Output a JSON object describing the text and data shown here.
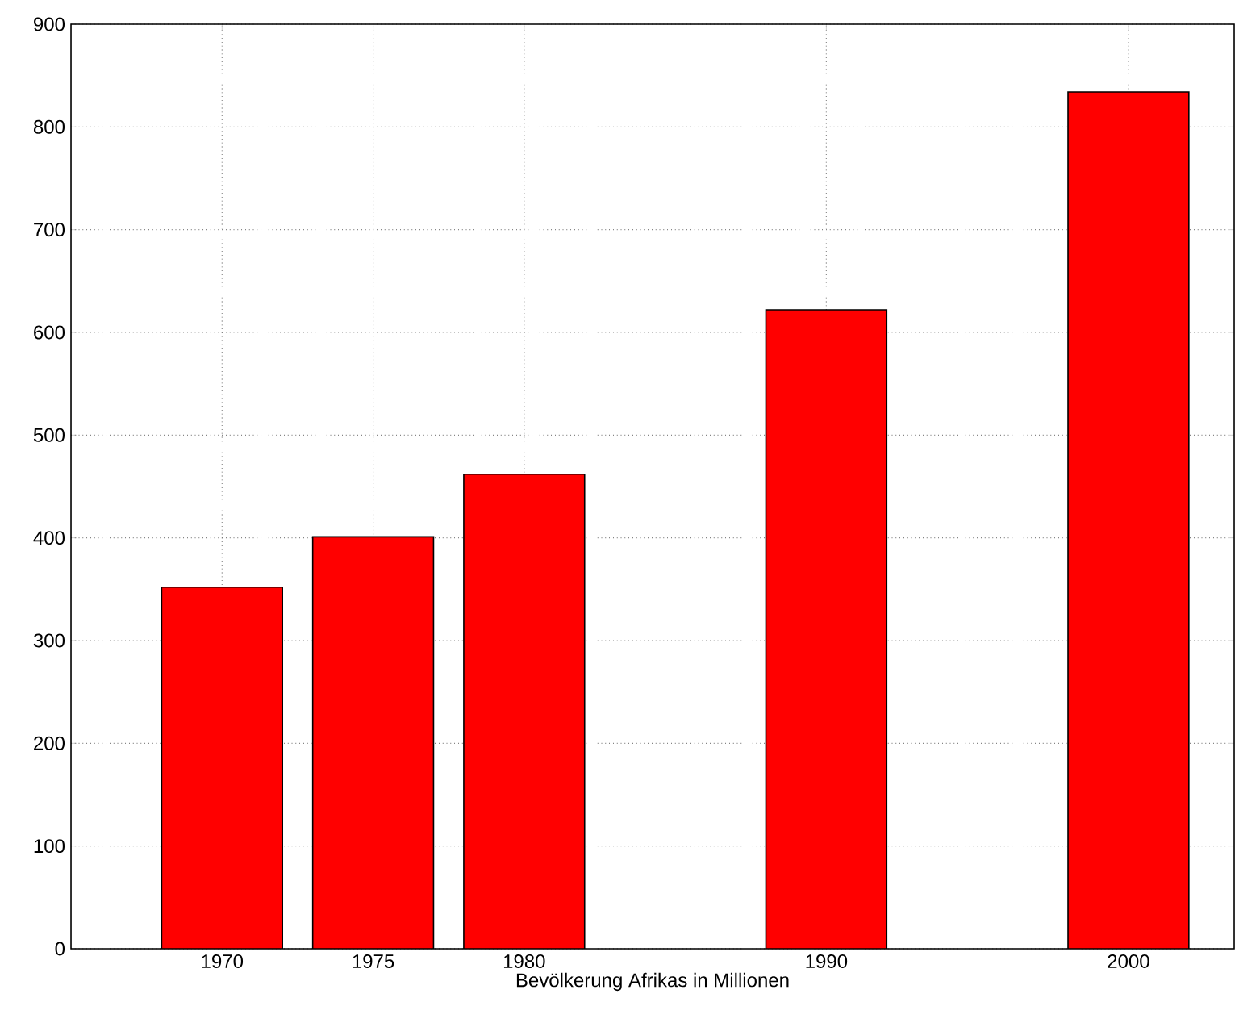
{
  "chart_data": {
    "type": "bar",
    "xlabel": "Bevölkerung Afrikas in Millionen",
    "x": [
      1970,
      1975,
      1980,
      1990,
      2000
    ],
    "values": [
      352,
      401,
      462,
      622,
      834
    ],
    "color": "#ff0000",
    "xlim": [
      1965,
      2003.5
    ],
    "ylim": [
      0,
      900
    ],
    "xticks": [
      1970,
      1975,
      1980,
      1990,
      2000
    ],
    "yticks": [
      0,
      100,
      200,
      300,
      400,
      500,
      600,
      700,
      800,
      900
    ],
    "grid": true
  }
}
